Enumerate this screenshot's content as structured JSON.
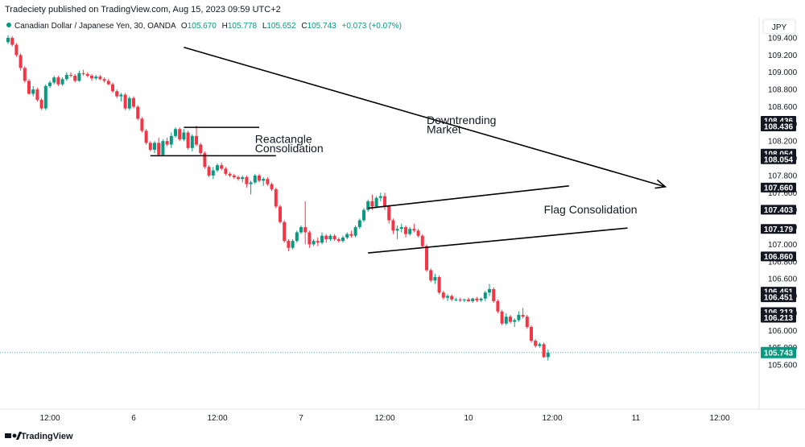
{
  "header": {
    "published": "Tradeciety published on TradingView.com, Aug 15, 2023 09:59 UTC+2"
  },
  "legend": {
    "symbol": "Canadian Dollar / Japanese Yen, 30, OANDA",
    "open_label": "O",
    "open": "105.670",
    "high_label": "H",
    "high": "105.778",
    "low_label": "L",
    "low": "105.652",
    "close_label": "C",
    "close": "105.743",
    "change": "+0.073 (+0.07%)"
  },
  "currency_button": "JPY",
  "footer": {
    "brand": "TradingView"
  },
  "colors": {
    "up": "#089981",
    "down": "#f23645",
    "text": "#131722",
    "last_price": "#089981",
    "badge": "#131722",
    "grid_line": "#e0e3eb"
  },
  "chart_data": {
    "type": "candlestick",
    "y_ticks": [
      "109.400",
      "109.200",
      "109.000",
      "108.800",
      "108.600",
      "108.400",
      "108.200",
      "108.000",
      "107.800",
      "107.600",
      "107.400",
      "107.200",
      "107.000",
      "106.800",
      "106.600",
      "106.400",
      "106.200",
      "106.000",
      "105.800",
      "105.600"
    ],
    "x_ticks": [
      {
        "label": "12:00",
        "x": 10
      },
      {
        "label": "6",
        "x": 30
      },
      {
        "label": "12:00",
        "x": 50
      },
      {
        "label": "7",
        "x": 70
      },
      {
        "label": "12:00",
        "x": 90
      },
      {
        "label": "10",
        "x": 110
      },
      {
        "label": "12:00",
        "x": 130
      },
      {
        "label": "11",
        "x": 150
      },
      {
        "label": "12:00",
        "x": 170
      }
    ],
    "price_badges": [
      {
        "label": "108.436",
        "value": 108.436
      },
      {
        "label": "108.436",
        "value": 108.436
      },
      {
        "label": "108.054",
        "value": 108.054
      },
      {
        "label": "108.054",
        "value": 108.054
      },
      {
        "label": "107.660",
        "value": 107.66
      },
      {
        "label": "107.403",
        "value": 107.403
      },
      {
        "label": "107.179",
        "value": 107.179
      },
      {
        "label": "106.860",
        "value": 106.86
      },
      {
        "label": "106.451",
        "value": 106.451
      },
      {
        "label": "106.451",
        "value": 106.451
      },
      {
        "label": "106.213",
        "value": 106.213
      },
      {
        "label": "106.213",
        "value": 106.213
      }
    ],
    "last_price": {
      "label": "105.743",
      "value": 105.743
    },
    "annotations": [
      {
        "text": "Downtrending",
        "x": 100,
        "y": 108.4
      },
      {
        "text": "Market",
        "x": 100,
        "y": 108.29
      },
      {
        "text": "Reactangle",
        "x": 59,
        "y": 108.18
      },
      {
        "text": "Consolidation",
        "x": 59,
        "y": 108.07
      },
      {
        "text": "Flag Consolidation",
        "x": 128,
        "y": 107.36
      }
    ],
    "trend_lines": [
      {
        "x1": 42,
        "y1": 109.29,
        "x2": 157,
        "y2": 107.67,
        "arrow": true
      },
      {
        "x1": 42,
        "y1": 108.36,
        "x2": 60,
        "y2": 108.36
      },
      {
        "x1": 34,
        "y1": 108.03,
        "x2": 64,
        "y2": 108.03
      },
      {
        "x1": 86,
        "y1": 107.42,
        "x2": 134,
        "y2": 107.68
      },
      {
        "x1": 86,
        "y1": 106.9,
        "x2": 148,
        "y2": 107.19
      }
    ],
    "candles": [
      [
        109.35,
        109.43,
        109.33,
        109.4
      ],
      [
        109.4,
        109.42,
        109.3,
        109.32
      ],
      [
        109.32,
        109.34,
        109.18,
        109.2
      ],
      [
        109.2,
        109.22,
        109.02,
        109.05
      ],
      [
        109.05,
        109.07,
        108.88,
        108.9
      ],
      [
        108.9,
        108.92,
        108.74,
        108.75
      ],
      [
        108.75,
        108.84,
        108.72,
        108.8
      ],
      [
        108.8,
        108.82,
        108.66,
        108.68
      ],
      [
        108.68,
        108.7,
        108.56,
        108.58
      ],
      [
        108.58,
        108.86,
        108.56,
        108.84
      ],
      [
        108.84,
        108.9,
        108.82,
        108.88
      ],
      [
        108.88,
        108.96,
        108.86,
        108.94
      ],
      [
        108.94,
        108.96,
        108.84,
        108.86
      ],
      [
        108.86,
        108.94,
        108.84,
        108.92
      ],
      [
        108.92,
        109.0,
        108.9,
        108.97
      ],
      [
        108.97,
        109.0,
        108.94,
        108.96
      ],
      [
        108.96,
        108.98,
        108.88,
        108.9
      ],
      [
        108.9,
        109.02,
        108.89,
        108.99
      ],
      [
        108.99,
        109.03,
        108.96,
        108.98
      ],
      [
        108.98,
        109.0,
        108.94,
        108.96
      ],
      [
        108.96,
        108.98,
        108.9,
        108.93
      ],
      [
        108.93,
        108.97,
        108.91,
        108.95
      ],
      [
        108.95,
        108.97,
        108.91,
        108.92
      ],
      [
        108.92,
        108.94,
        108.88,
        108.9
      ],
      [
        108.9,
        108.92,
        108.85,
        108.86
      ],
      [
        108.86,
        108.88,
        108.76,
        108.78
      ],
      [
        108.78,
        108.8,
        108.7,
        108.72
      ],
      [
        108.72,
        108.76,
        108.66,
        108.74
      ],
      [
        108.74,
        108.76,
        108.56,
        108.58
      ],
      [
        108.58,
        108.72,
        108.56,
        108.7
      ],
      [
        108.7,
        108.72,
        108.58,
        108.6
      ],
      [
        108.6,
        108.62,
        108.44,
        108.46
      ],
      [
        108.46,
        108.48,
        108.3,
        108.32
      ],
      [
        108.32,
        108.34,
        108.16,
        108.18
      ],
      [
        108.18,
        108.2,
        108.08,
        108.1
      ],
      [
        108.1,
        108.2,
        108.06,
        108.18
      ],
      [
        108.18,
        108.24,
        108.02,
        108.04
      ],
      [
        108.04,
        108.22,
        108.03,
        108.2
      ],
      [
        108.2,
        108.24,
        108.14,
        108.16
      ],
      [
        108.16,
        108.3,
        108.12,
        108.26
      ],
      [
        108.26,
        108.36,
        108.24,
        108.34
      ],
      [
        108.34,
        108.36,
        108.2,
        108.22
      ],
      [
        108.22,
        108.34,
        108.2,
        108.3
      ],
      [
        108.3,
        108.32,
        108.1,
        108.12
      ],
      [
        108.12,
        108.28,
        108.08,
        108.26
      ],
      [
        108.26,
        108.38,
        108.14,
        108.16
      ],
      [
        108.16,
        108.18,
        108.04,
        108.06
      ],
      [
        108.06,
        108.08,
        107.88,
        107.9
      ],
      [
        107.9,
        107.92,
        107.78,
        107.8
      ],
      [
        107.8,
        107.9,
        107.76,
        107.86
      ],
      [
        107.86,
        107.94,
        107.84,
        107.92
      ],
      [
        107.92,
        107.95,
        107.86,
        107.88
      ],
      [
        107.88,
        107.9,
        107.8,
        107.82
      ],
      [
        107.82,
        107.84,
        107.78,
        107.8
      ],
      [
        107.8,
        107.82,
        107.76,
        107.78
      ],
      [
        107.78,
        107.8,
        107.74,
        107.76
      ],
      [
        107.76,
        107.8,
        107.72,
        107.78
      ],
      [
        107.78,
        107.8,
        107.66,
        107.7
      ],
      [
        107.7,
        107.74,
        107.58,
        107.72
      ],
      [
        107.72,
        107.82,
        107.7,
        107.8
      ],
      [
        107.8,
        107.82,
        107.72,
        107.74
      ],
      [
        107.74,
        107.78,
        107.68,
        107.76
      ],
      [
        107.76,
        107.78,
        107.68,
        107.7
      ],
      [
        107.7,
        107.72,
        107.62,
        107.64
      ],
      [
        107.64,
        107.66,
        107.42,
        107.44
      ],
      [
        107.44,
        107.46,
        107.24,
        107.26
      ],
      [
        107.26,
        107.28,
        107.02,
        107.04
      ],
      [
        107.04,
        107.06,
        106.92,
        106.96
      ],
      [
        106.96,
        107.06,
        106.94,
        107.04
      ],
      [
        107.04,
        107.16,
        107.02,
        107.14
      ],
      [
        107.14,
        107.22,
        107.12,
        107.2
      ],
      [
        107.2,
        107.5,
        107.0,
        107.14
      ],
      [
        107.14,
        107.16,
        106.96,
        107.0
      ],
      [
        107.0,
        107.06,
        106.98,
        107.04
      ],
      [
        107.04,
        107.08,
        106.98,
        107.02
      ],
      [
        107.02,
        107.14,
        107.0,
        107.1
      ],
      [
        107.1,
        107.12,
        107.02,
        107.06
      ],
      [
        107.06,
        107.12,
        107.04,
        107.1
      ],
      [
        107.1,
        107.12,
        107.04,
        107.06
      ],
      [
        107.06,
        107.08,
        107.02,
        107.04
      ],
      [
        107.04,
        107.1,
        107.02,
        107.08
      ],
      [
        107.08,
        107.14,
        107.06,
        107.12
      ],
      [
        107.12,
        107.16,
        107.08,
        107.1
      ],
      [
        107.1,
        107.22,
        107.08,
        107.2
      ],
      [
        107.2,
        107.3,
        107.18,
        107.28
      ],
      [
        107.28,
        107.42,
        107.26,
        107.4
      ],
      [
        107.4,
        107.52,
        107.38,
        107.5
      ],
      [
        107.5,
        107.58,
        107.4,
        107.44
      ],
      [
        107.44,
        107.56,
        107.42,
        107.54
      ],
      [
        107.54,
        107.6,
        107.5,
        107.56
      ],
      [
        107.56,
        107.6,
        107.4,
        107.44
      ],
      [
        107.44,
        107.46,
        107.24,
        107.28
      ],
      [
        107.28,
        107.3,
        107.12,
        107.16
      ],
      [
        107.16,
        107.22,
        107.06,
        107.18
      ],
      [
        107.18,
        107.24,
        107.14,
        107.2
      ],
      [
        107.2,
        107.22,
        107.08,
        107.12
      ],
      [
        107.12,
        107.2,
        107.1,
        107.18
      ],
      [
        107.18,
        107.24,
        107.14,
        107.16
      ],
      [
        107.16,
        107.18,
        107.08,
        107.1
      ],
      [
        107.1,
        107.12,
        106.96,
        106.98
      ],
      [
        106.98,
        107.0,
        106.68,
        106.7
      ],
      [
        106.7,
        106.72,
        106.56,
        106.58
      ],
      [
        106.58,
        106.66,
        106.54,
        106.62
      ],
      [
        106.62,
        106.64,
        106.42,
        106.44
      ],
      [
        106.44,
        106.46,
        106.36,
        106.38
      ],
      [
        106.38,
        106.42,
        106.34,
        106.4
      ],
      [
        106.4,
        106.42,
        106.34,
        106.36
      ],
      [
        106.36,
        106.38,
        106.34,
        106.36
      ],
      [
        106.36,
        106.38,
        106.33,
        106.35
      ],
      [
        106.35,
        106.37,
        106.33,
        106.36
      ],
      [
        106.36,
        106.38,
        106.33,
        106.34
      ],
      [
        106.34,
        106.38,
        106.32,
        106.37
      ],
      [
        106.37,
        106.39,
        106.33,
        106.35
      ],
      [
        106.35,
        106.38,
        106.33,
        106.37
      ],
      [
        106.37,
        106.46,
        106.34,
        106.44
      ],
      [
        106.44,
        106.54,
        106.4,
        106.48
      ],
      [
        106.48,
        106.5,
        106.32,
        106.34
      ],
      [
        106.34,
        106.36,
        106.2,
        106.22
      ],
      [
        106.22,
        106.24,
        106.06,
        106.08
      ],
      [
        106.08,
        106.2,
        106.06,
        106.16
      ],
      [
        106.16,
        106.18,
        106.08,
        106.1
      ],
      [
        106.1,
        106.14,
        106.04,
        106.12
      ],
      [
        106.12,
        106.22,
        106.1,
        106.18
      ],
      [
        106.18,
        106.26,
        106.14,
        106.16
      ],
      [
        106.16,
        106.18,
        106.02,
        106.04
      ],
      [
        106.04,
        106.06,
        105.86,
        105.88
      ],
      [
        105.88,
        105.9,
        105.8,
        105.82
      ],
      [
        105.82,
        105.86,
        105.8,
        105.84
      ],
      [
        105.84,
        105.86,
        105.68,
        105.69
      ],
      [
        105.69,
        105.78,
        105.65,
        105.74
      ]
    ]
  }
}
